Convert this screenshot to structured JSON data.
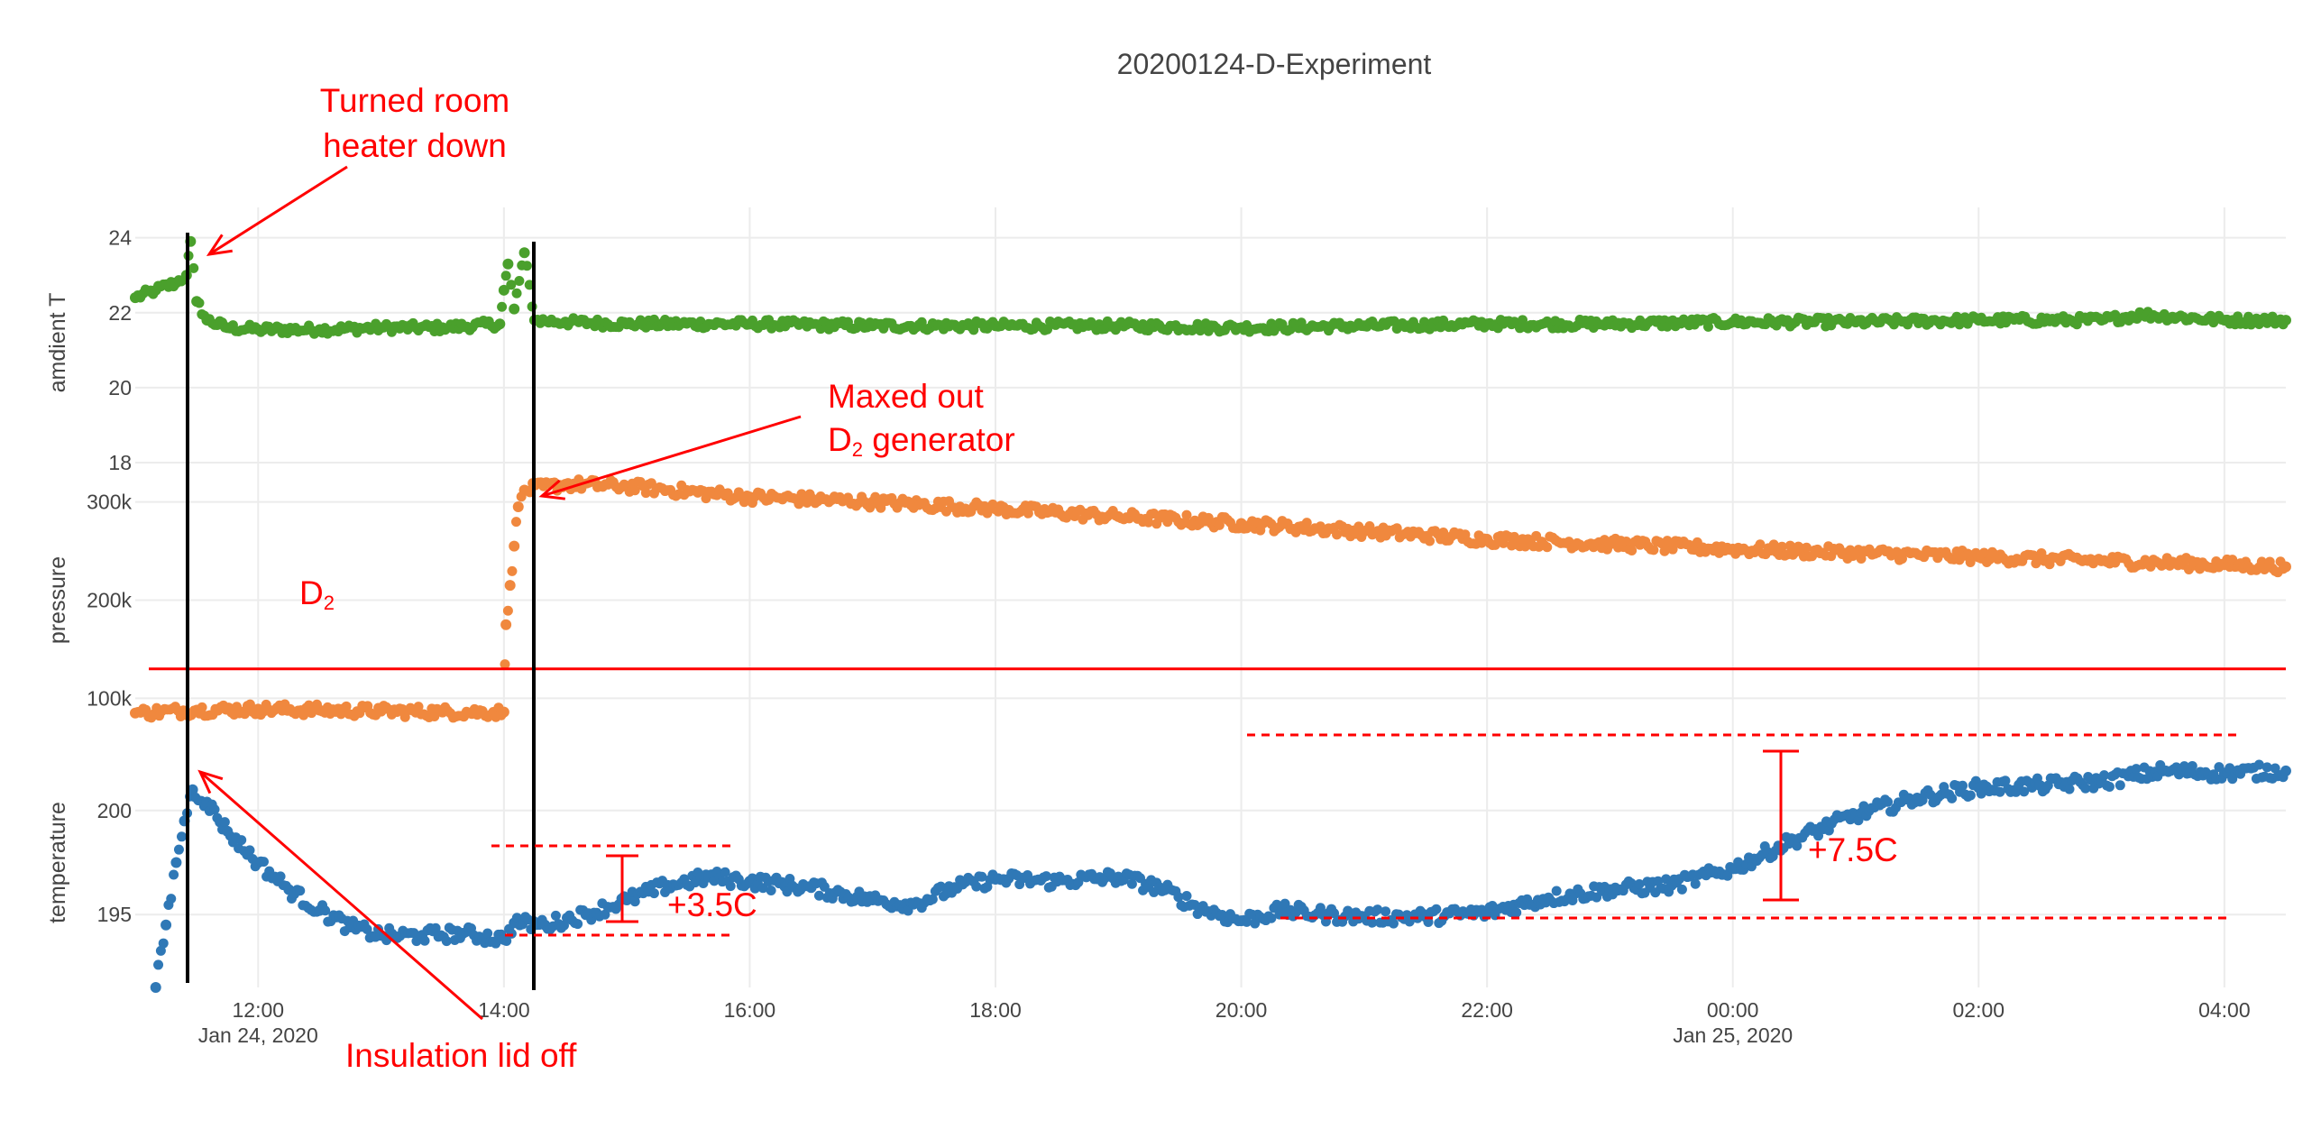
{
  "chart_data": {
    "type": "scatter",
    "title": "20200124-D-Experiment",
    "x_range": [
      "2020-01-24 11:00",
      "2020-01-25 04:30"
    ],
    "x_ticks": [
      {
        "value": "2020-01-24 12:00",
        "label": "12:00",
        "sublabel": "Jan 24, 2020"
      },
      {
        "value": "2020-01-24 14:00",
        "label": "14:00",
        "sublabel": ""
      },
      {
        "value": "2020-01-24 16:00",
        "label": "16:00",
        "sublabel": ""
      },
      {
        "value": "2020-01-24 18:00",
        "label": "18:00",
        "sublabel": ""
      },
      {
        "value": "2020-01-24 20:00",
        "label": "20:00",
        "sublabel": ""
      },
      {
        "value": "2020-01-24 22:00",
        "label": "22:00",
        "sublabel": ""
      },
      {
        "value": "2020-01-25 00:00",
        "label": "00:00",
        "sublabel": "Jan 25, 2020"
      },
      {
        "value": "2020-01-25 02:00",
        "label": "02:00",
        "sublabel": ""
      },
      {
        "value": "2020-01-25 04:00",
        "label": "04:00",
        "sublabel": ""
      }
    ],
    "grid": true,
    "panels": [
      {
        "id": "ambient",
        "ylabel": "amdient T",
        "ylim": [
          18,
          24.4
        ],
        "yticks": [
          18,
          20,
          22,
          24
        ],
        "ytick_labels": [
          "18",
          "20",
          "22",
          "24"
        ],
        "color": "#4aa02c",
        "points": [
          [
            "2020-01-24 11:00",
            22.4
          ],
          [
            "2020-01-24 11:10",
            22.6
          ],
          [
            "2020-01-24 11:20",
            22.8
          ],
          [
            "2020-01-24 11:25",
            23.0
          ],
          [
            "2020-01-24 11:27",
            23.9
          ],
          [
            "2020-01-24 11:30",
            22.3
          ],
          [
            "2020-01-24 11:35",
            21.8
          ],
          [
            "2020-01-24 11:45",
            21.6
          ],
          [
            "2020-01-24 12:00",
            21.55
          ],
          [
            "2020-01-24 12:30",
            21.55
          ],
          [
            "2020-01-24 13:00",
            21.6
          ],
          [
            "2020-01-24 13:30",
            21.6
          ],
          [
            "2020-01-24 13:58",
            21.7
          ],
          [
            "2020-01-24 14:00",
            22.6
          ],
          [
            "2020-01-24 14:02",
            23.3
          ],
          [
            "2020-01-24 14:05",
            22.1
          ],
          [
            "2020-01-24 14:10",
            23.6
          ],
          [
            "2020-01-24 14:15",
            21.8
          ],
          [
            "2020-01-24 14:30",
            21.75
          ],
          [
            "2020-01-24 15:00",
            21.7
          ],
          [
            "2020-01-24 16:00",
            21.7
          ],
          [
            "2020-01-24 17:00",
            21.65
          ],
          [
            "2020-01-24 18:00",
            21.65
          ],
          [
            "2020-01-24 19:00",
            21.65
          ],
          [
            "2020-01-24 20:00",
            21.6
          ],
          [
            "2020-01-24 21:00",
            21.65
          ],
          [
            "2020-01-24 22:00",
            21.7
          ],
          [
            "2020-01-24 23:00",
            21.7
          ],
          [
            "2020-01-25 00:00",
            21.75
          ],
          [
            "2020-01-25 01:00",
            21.75
          ],
          [
            "2020-01-25 02:00",
            21.8
          ],
          [
            "2020-01-25 03:00",
            21.8
          ],
          [
            "2020-01-25 03:20",
            21.95
          ],
          [
            "2020-01-25 04:00",
            21.8
          ],
          [
            "2020-01-25 04:30",
            21.8
          ]
        ]
      },
      {
        "id": "pressure",
        "ylabel": "pressure",
        "ylim": [
          60000,
          340000
        ],
        "yticks": [
          100000,
          200000,
          300000
        ],
        "ytick_labels": [
          "100k",
          "200k",
          "300k"
        ],
        "color": "#f0883e",
        "points": [
          [
            "2020-01-24 11:00",
            85000
          ],
          [
            "2020-01-24 11:30",
            88000
          ],
          [
            "2020-01-24 12:00",
            89000
          ],
          [
            "2020-01-24 12:30",
            88000
          ],
          [
            "2020-01-24 13:00",
            87000
          ],
          [
            "2020-01-24 13:30",
            86000
          ],
          [
            "2020-01-24 14:00",
            86000
          ],
          [
            "2020-01-24 14:01",
            175000
          ],
          [
            "2020-01-24 14:03",
            215000
          ],
          [
            "2020-01-24 14:05",
            255000
          ],
          [
            "2020-01-24 14:07",
            295000
          ],
          [
            "2020-01-24 14:10",
            312000
          ],
          [
            "2020-01-24 14:30",
            318000
          ],
          [
            "2020-01-24 15:00",
            316000
          ],
          [
            "2020-01-24 16:00",
            305000
          ],
          [
            "2020-01-24 17:00",
            300000
          ],
          [
            "2020-01-24 18:00",
            293000
          ],
          [
            "2020-01-24 19:00",
            285000
          ],
          [
            "2020-01-24 20:00",
            278000
          ],
          [
            "2020-01-24 21:00",
            270000
          ],
          [
            "2020-01-24 22:00",
            262000
          ],
          [
            "2020-01-24 23:00",
            257000
          ],
          [
            "2020-01-25 00:00",
            252000
          ],
          [
            "2020-01-25 01:00",
            248000
          ],
          [
            "2020-01-25 02:00",
            244000
          ],
          [
            "2020-01-25 03:00",
            240000
          ],
          [
            "2020-01-25 04:00",
            236000
          ],
          [
            "2020-01-25 04:30",
            234000
          ]
        ]
      },
      {
        "id": "temperature",
        "ylabel": "temperature",
        "ylim": [
          191.5,
          203.5
        ],
        "yticks": [
          195,
          200
        ],
        "ytick_labels": [
          "195",
          "200"
        ],
        "color": "#2f78b6",
        "points": [
          [
            "2020-01-24 11:10",
            191.5
          ],
          [
            "2020-01-24 11:15",
            194.5
          ],
          [
            "2020-01-24 11:20",
            197.5
          ],
          [
            "2020-01-24 11:24",
            199.5
          ],
          [
            "2020-01-24 11:28",
            201.0
          ],
          [
            "2020-01-24 11:35",
            200.4
          ],
          [
            "2020-01-24 11:45",
            199.0
          ],
          [
            "2020-01-24 12:00",
            197.5
          ],
          [
            "2020-01-24 12:15",
            196.2
          ],
          [
            "2020-01-24 12:30",
            195.2
          ],
          [
            "2020-01-24 12:45",
            194.4
          ],
          [
            "2020-01-24 13:00",
            194.0
          ],
          [
            "2020-01-24 13:20",
            194.0
          ],
          [
            "2020-01-24 13:40",
            194.1
          ],
          [
            "2020-01-24 14:00",
            193.8
          ],
          [
            "2020-01-24 14:05",
            194.6
          ],
          [
            "2020-01-24 14:20",
            194.5
          ],
          [
            "2020-01-24 14:40",
            195.0
          ],
          [
            "2020-01-24 15:00",
            195.7
          ],
          [
            "2020-01-24 15:20",
            196.4
          ],
          [
            "2020-01-24 15:40",
            196.8
          ],
          [
            "2020-01-24 16:00",
            196.6
          ],
          [
            "2020-01-24 16:30",
            196.3
          ],
          [
            "2020-01-24 17:00",
            195.7
          ],
          [
            "2020-01-24 17:20",
            195.5
          ],
          [
            "2020-01-24 17:40",
            196.3
          ],
          [
            "2020-01-24 18:00",
            196.7
          ],
          [
            "2020-01-24 18:30",
            196.6
          ],
          [
            "2020-01-24 19:00",
            196.8
          ],
          [
            "2020-01-24 19:20",
            196.3
          ],
          [
            "2020-01-24 19:40",
            195.3
          ],
          [
            "2020-01-24 20:00",
            194.7
          ],
          [
            "2020-01-24 20:20",
            195.2
          ],
          [
            "2020-01-24 20:40",
            195.0
          ],
          [
            "2020-01-24 21:00",
            194.9
          ],
          [
            "2020-01-24 21:30",
            194.9
          ],
          [
            "2020-01-24 22:00",
            195.1
          ],
          [
            "2020-01-24 22:30",
            195.8
          ],
          [
            "2020-01-24 23:00",
            196.2
          ],
          [
            "2020-01-24 23:30",
            196.4
          ],
          [
            "2020-01-25 00:00",
            197.2
          ],
          [
            "2020-01-25 00:30",
            198.6
          ],
          [
            "2020-01-25 01:00",
            199.8
          ],
          [
            "2020-01-25 01:30",
            200.6
          ],
          [
            "2020-01-25 02:00",
            201.1
          ],
          [
            "2020-01-25 02:30",
            201.2
          ],
          [
            "2020-01-25 03:00",
            201.4
          ],
          [
            "2020-01-25 03:30",
            201.9
          ],
          [
            "2020-01-25 04:00",
            201.8
          ],
          [
            "2020-01-25 04:30",
            201.9
          ]
        ]
      }
    ],
    "annotations": {
      "room_heater": "Turned room heater down",
      "room_heater_lines": [
        "Turned room",
        "heater down"
      ],
      "maxed_out_line1": "Maxed out",
      "maxed_out_line2_main": "D",
      "maxed_out_line2_sub": "2",
      "maxed_out_line2_rest": " generator",
      "d2_main": "D",
      "d2_sub": "2",
      "insulation": "Insulation lid off",
      "delta_small": "+3.5C",
      "delta_large": "+7.5C"
    },
    "d2_threshold": 130000
  }
}
